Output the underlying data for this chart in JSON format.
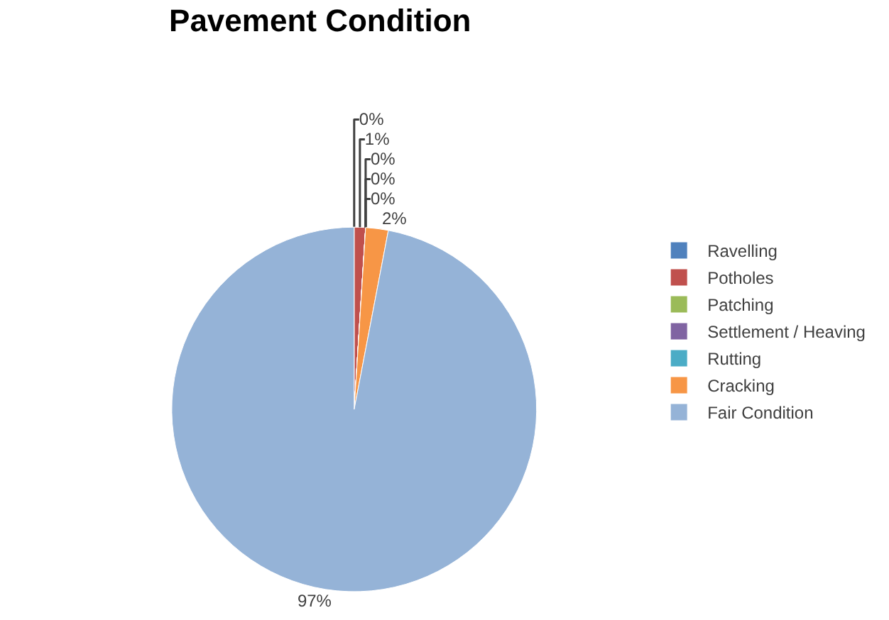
{
  "chart_data": {
    "type": "pie",
    "title": "Pavement Condition",
    "categories": [
      "Ravelling",
      "Potholes",
      "Patching",
      "Settlement / Heaving",
      "Rutting",
      "Cracking",
      "Fair Condition"
    ],
    "values": [
      0,
      1,
      0,
      0,
      0,
      2,
      97
    ],
    "colors": [
      "#4f81bd",
      "#c0504d",
      "#9bbb59",
      "#8064a2",
      "#4bacc6",
      "#f79646",
      "#95b3d7"
    ],
    "value_labels": [
      "0%",
      "1%",
      "0%",
      "0%",
      "0%",
      "2%",
      "97%"
    ],
    "legend": "right"
  }
}
